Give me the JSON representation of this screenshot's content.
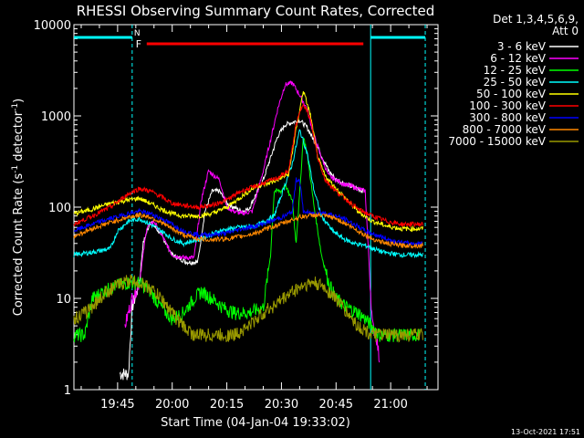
{
  "chart_data": {
    "type": "line",
    "title": "RHESSI Observing Summary Count Rates, Corrected",
    "xlabel": "Start Time (04-Jan-04 19:33:02)",
    "ylabel": "Corrected Count Rate (s",
    "ylabel_sup1": "-1",
    "ylabel_mid": " detector",
    "ylabel_sup2": "-1",
    "ylabel_end": ")",
    "yscale": "log",
    "ylim": [
      1,
      10000
    ],
    "xlim_min": [
      0,
      100
    ],
    "x_tick_labels": [
      {
        "t": 12,
        "label": "19:45"
      },
      {
        "t": 27,
        "label": "20:00"
      },
      {
        "t": 42,
        "label": "20:15"
      },
      {
        "t": 57,
        "label": "20:30"
      },
      {
        "t": 72,
        "label": "20:45"
      },
      {
        "t": 87,
        "label": "21:00"
      }
    ],
    "y_tick_labels": [
      "1",
      "10",
      "100",
      "1000",
      "10000"
    ],
    "legend_header": [
      "Det 1,3,4,5,6,9,",
      "Att 0"
    ],
    "legend_position": "right",
    "date_stamp": "13-Oct-2021 17:51",
    "flags": {
      "night_label": "N",
      "flare_label": "F",
      "night_color": "#00ffff",
      "flare_color": "#ff0000",
      "night_segments": [
        [
          0,
          16
        ],
        [
          81.5,
          96.5
        ]
      ],
      "flare_segment": [
        20,
        79.5
      ],
      "vertical_markers": [
        16,
        81.5,
        96.5
      ]
    },
    "series": [
      {
        "name": "3 - 6 keV",
        "color": "#ffffff",
        "points": [
          [
            0,
            null
          ],
          [
            12,
            null
          ],
          [
            12.5,
            1.5
          ],
          [
            15,
            1.5
          ],
          [
            16,
            8
          ],
          [
            18,
            15
          ],
          [
            19,
            40
          ],
          [
            21,
            70
          ],
          [
            24,
            50
          ],
          [
            27,
            30
          ],
          [
            31,
            25
          ],
          [
            34,
            25
          ],
          [
            36,
            90
          ],
          [
            38,
            150
          ],
          [
            40,
            150
          ],
          [
            42,
            110
          ],
          [
            44,
            100
          ],
          [
            46,
            90
          ],
          [
            48,
            95
          ],
          [
            52,
            200
          ],
          [
            56,
            600
          ],
          [
            58,
            800
          ],
          [
            62,
            900
          ],
          [
            64,
            750
          ],
          [
            67,
            450
          ],
          [
            70,
            250
          ],
          [
            72,
            200
          ],
          [
            76,
            170
          ],
          [
            78,
            160
          ],
          [
            79.5,
            150
          ],
          [
            79.5,
            null
          ]
        ]
      },
      {
        "name": "6 - 12 keV",
        "color": "#ff00ff",
        "points": [
          [
            14,
            5
          ],
          [
            16,
            10
          ],
          [
            18,
            15
          ],
          [
            20,
            60
          ],
          [
            22,
            70
          ],
          [
            24,
            50
          ],
          [
            27,
            30
          ],
          [
            30,
            28
          ],
          [
            33,
            28
          ],
          [
            35,
            120
          ],
          [
            37,
            250
          ],
          [
            38,
            230
          ],
          [
            40,
            200
          ],
          [
            42,
            100
          ],
          [
            44,
            90
          ],
          [
            46,
            85
          ],
          [
            49,
            90
          ],
          [
            52,
            250
          ],
          [
            56,
            1200
          ],
          [
            58,
            2200
          ],
          [
            60,
            2300
          ],
          [
            62,
            1700
          ],
          [
            64,
            1200
          ],
          [
            66,
            600
          ],
          [
            68,
            350
          ],
          [
            70,
            220
          ],
          [
            74,
            180
          ],
          [
            78,
            160
          ],
          [
            80,
            150
          ],
          [
            82,
            5
          ],
          [
            83,
            4
          ],
          [
            84,
            2
          ]
        ]
      },
      {
        "name": "12 - 25 keV",
        "color": "#00ff00",
        "points": [
          [
            0,
            4
          ],
          [
            3,
            4
          ],
          [
            5,
            10
          ],
          [
            8,
            12
          ],
          [
            10,
            13
          ],
          [
            12,
            14
          ],
          [
            15,
            15
          ],
          [
            18,
            15
          ],
          [
            21,
            12
          ],
          [
            24,
            8
          ],
          [
            27,
            6
          ],
          [
            30,
            7
          ],
          [
            33,
            10
          ],
          [
            35,
            12
          ],
          [
            38,
            10
          ],
          [
            41,
            8
          ],
          [
            44,
            7
          ],
          [
            48,
            7
          ],
          [
            52,
            8
          ],
          [
            54,
            30
          ],
          [
            55,
            150
          ],
          [
            57,
            150
          ],
          [
            58,
            180
          ],
          [
            59,
            140
          ],
          [
            60,
            120
          ],
          [
            61,
            40
          ],
          [
            62,
            140
          ],
          [
            63,
            600
          ],
          [
            64,
            400
          ],
          [
            66,
            100
          ],
          [
            68,
            30
          ],
          [
            70,
            15
          ],
          [
            72,
            10
          ],
          [
            75,
            8
          ],
          [
            78,
            7
          ],
          [
            80,
            6
          ],
          [
            84,
            4
          ],
          [
            90,
            4
          ],
          [
            95,
            4
          ]
        ]
      },
      {
        "name": "25 - 50 keV",
        "color": "#00ffff",
        "points": [
          [
            0,
            30
          ],
          [
            5,
            32
          ],
          [
            10,
            35
          ],
          [
            12,
            55
          ],
          [
            15,
            70
          ],
          [
            18,
            75
          ],
          [
            21,
            65
          ],
          [
            24,
            55
          ],
          [
            27,
            45
          ],
          [
            30,
            40
          ],
          [
            35,
            45
          ],
          [
            40,
            55
          ],
          [
            45,
            60
          ],
          [
            50,
            62
          ],
          [
            55,
            80
          ],
          [
            60,
            300
          ],
          [
            62,
            700
          ],
          [
            64,
            400
          ],
          [
            66,
            150
          ],
          [
            68,
            80
          ],
          [
            71,
            55
          ],
          [
            74,
            45
          ],
          [
            77,
            40
          ],
          [
            80,
            38
          ],
          [
            85,
            32
          ],
          [
            90,
            30
          ],
          [
            96,
            30
          ]
        ]
      },
      {
        "name": "50 - 100 keV",
        "color": "#ffff00",
        "points": [
          [
            0,
            85
          ],
          [
            5,
            95
          ],
          [
            10,
            110
          ],
          [
            15,
            120
          ],
          [
            18,
            125
          ],
          [
            21,
            110
          ],
          [
            24,
            95
          ],
          [
            27,
            85
          ],
          [
            30,
            80
          ],
          [
            34,
            80
          ],
          [
            38,
            85
          ],
          [
            42,
            100
          ],
          [
            46,
            130
          ],
          [
            50,
            170
          ],
          [
            53,
            180
          ],
          [
            56,
            200
          ],
          [
            59,
            230
          ],
          [
            61,
            700
          ],
          [
            63,
            1900
          ],
          [
            65,
            1000
          ],
          [
            67,
            350
          ],
          [
            69,
            220
          ],
          [
            72,
            160
          ],
          [
            75,
            120
          ],
          [
            78,
            90
          ],
          [
            82,
            70
          ],
          [
            86,
            62
          ],
          [
            90,
            58
          ],
          [
            96,
            58
          ]
        ]
      },
      {
        "name": "100 - 300 keV",
        "color": "#ff0000",
        "points": [
          [
            0,
            65
          ],
          [
            5,
            80
          ],
          [
            10,
            100
          ],
          [
            15,
            140
          ],
          [
            18,
            160
          ],
          [
            21,
            150
          ],
          [
            24,
            130
          ],
          [
            27,
            110
          ],
          [
            30,
            105
          ],
          [
            34,
            100
          ],
          [
            38,
            105
          ],
          [
            42,
            120
          ],
          [
            46,
            150
          ],
          [
            50,
            170
          ],
          [
            53,
            190
          ],
          [
            56,
            210
          ],
          [
            59,
            250
          ],
          [
            61,
            800
          ],
          [
            63,
            1400
          ],
          [
            65,
            900
          ],
          [
            67,
            350
          ],
          [
            69,
            200
          ],
          [
            72,
            150
          ],
          [
            75,
            120
          ],
          [
            78,
            95
          ],
          [
            82,
            80
          ],
          [
            86,
            70
          ],
          [
            90,
            65
          ],
          [
            96,
            65
          ]
        ]
      },
      {
        "name": "300 - 800 keV",
        "color": "#0000ff",
        "points": [
          [
            0,
            55
          ],
          [
            5,
            65
          ],
          [
            10,
            75
          ],
          [
            15,
            85
          ],
          [
            18,
            90
          ],
          [
            21,
            85
          ],
          [
            24,
            75
          ],
          [
            27,
            65
          ],
          [
            30,
            55
          ],
          [
            34,
            50
          ],
          [
            38,
            50
          ],
          [
            42,
            52
          ],
          [
            46,
            58
          ],
          [
            50,
            62
          ],
          [
            54,
            70
          ],
          [
            58,
            80
          ],
          [
            60,
            90
          ],
          [
            61,
            200
          ],
          [
            62,
            200
          ],
          [
            63,
            90
          ],
          [
            65,
            85
          ],
          [
            68,
            88
          ],
          [
            71,
            82
          ],
          [
            74,
            75
          ],
          [
            77,
            65
          ],
          [
            80,
            55
          ],
          [
            84,
            48
          ],
          [
            88,
            42
          ],
          [
            92,
            40
          ],
          [
            96,
            40
          ]
        ]
      },
      {
        "name": "800 - 7000 keV",
        "color": "#ff8800",
        "points": [
          [
            0,
            48
          ],
          [
            5,
            58
          ],
          [
            10,
            68
          ],
          [
            15,
            78
          ],
          [
            18,
            82
          ],
          [
            21,
            78
          ],
          [
            24,
            68
          ],
          [
            27,
            58
          ],
          [
            30,
            50
          ],
          [
            34,
            45
          ],
          [
            38,
            44
          ],
          [
            42,
            45
          ],
          [
            46,
            48
          ],
          [
            50,
            52
          ],
          [
            54,
            60
          ],
          [
            58,
            68
          ],
          [
            62,
            78
          ],
          [
            66,
            82
          ],
          [
            69,
            80
          ],
          [
            72,
            75
          ],
          [
            75,
            65
          ],
          [
            78,
            55
          ],
          [
            82,
            45
          ],
          [
            86,
            40
          ],
          [
            90,
            38
          ],
          [
            96,
            38
          ]
        ]
      },
      {
        "name": "7000 - 15000 keV",
        "color": "#999900",
        "points": [
          [
            0,
            6
          ],
          [
            3,
            7
          ],
          [
            6,
            9
          ],
          [
            9,
            12
          ],
          [
            12,
            14
          ],
          [
            15,
            16
          ],
          [
            18,
            15
          ],
          [
            21,
            13
          ],
          [
            24,
            10
          ],
          [
            27,
            7
          ],
          [
            30,
            5
          ],
          [
            33,
            4
          ],
          [
            36,
            4
          ],
          [
            40,
            4
          ],
          [
            44,
            4
          ],
          [
            48,
            5
          ],
          [
            52,
            7
          ],
          [
            56,
            9
          ],
          [
            60,
            12
          ],
          [
            63,
            14
          ],
          [
            66,
            15
          ],
          [
            69,
            13
          ],
          [
            72,
            10
          ],
          [
            75,
            7
          ],
          [
            78,
            5
          ],
          [
            82,
            4
          ],
          [
            86,
            4
          ],
          [
            90,
            4
          ],
          [
            96,
            4
          ]
        ]
      }
    ]
  }
}
